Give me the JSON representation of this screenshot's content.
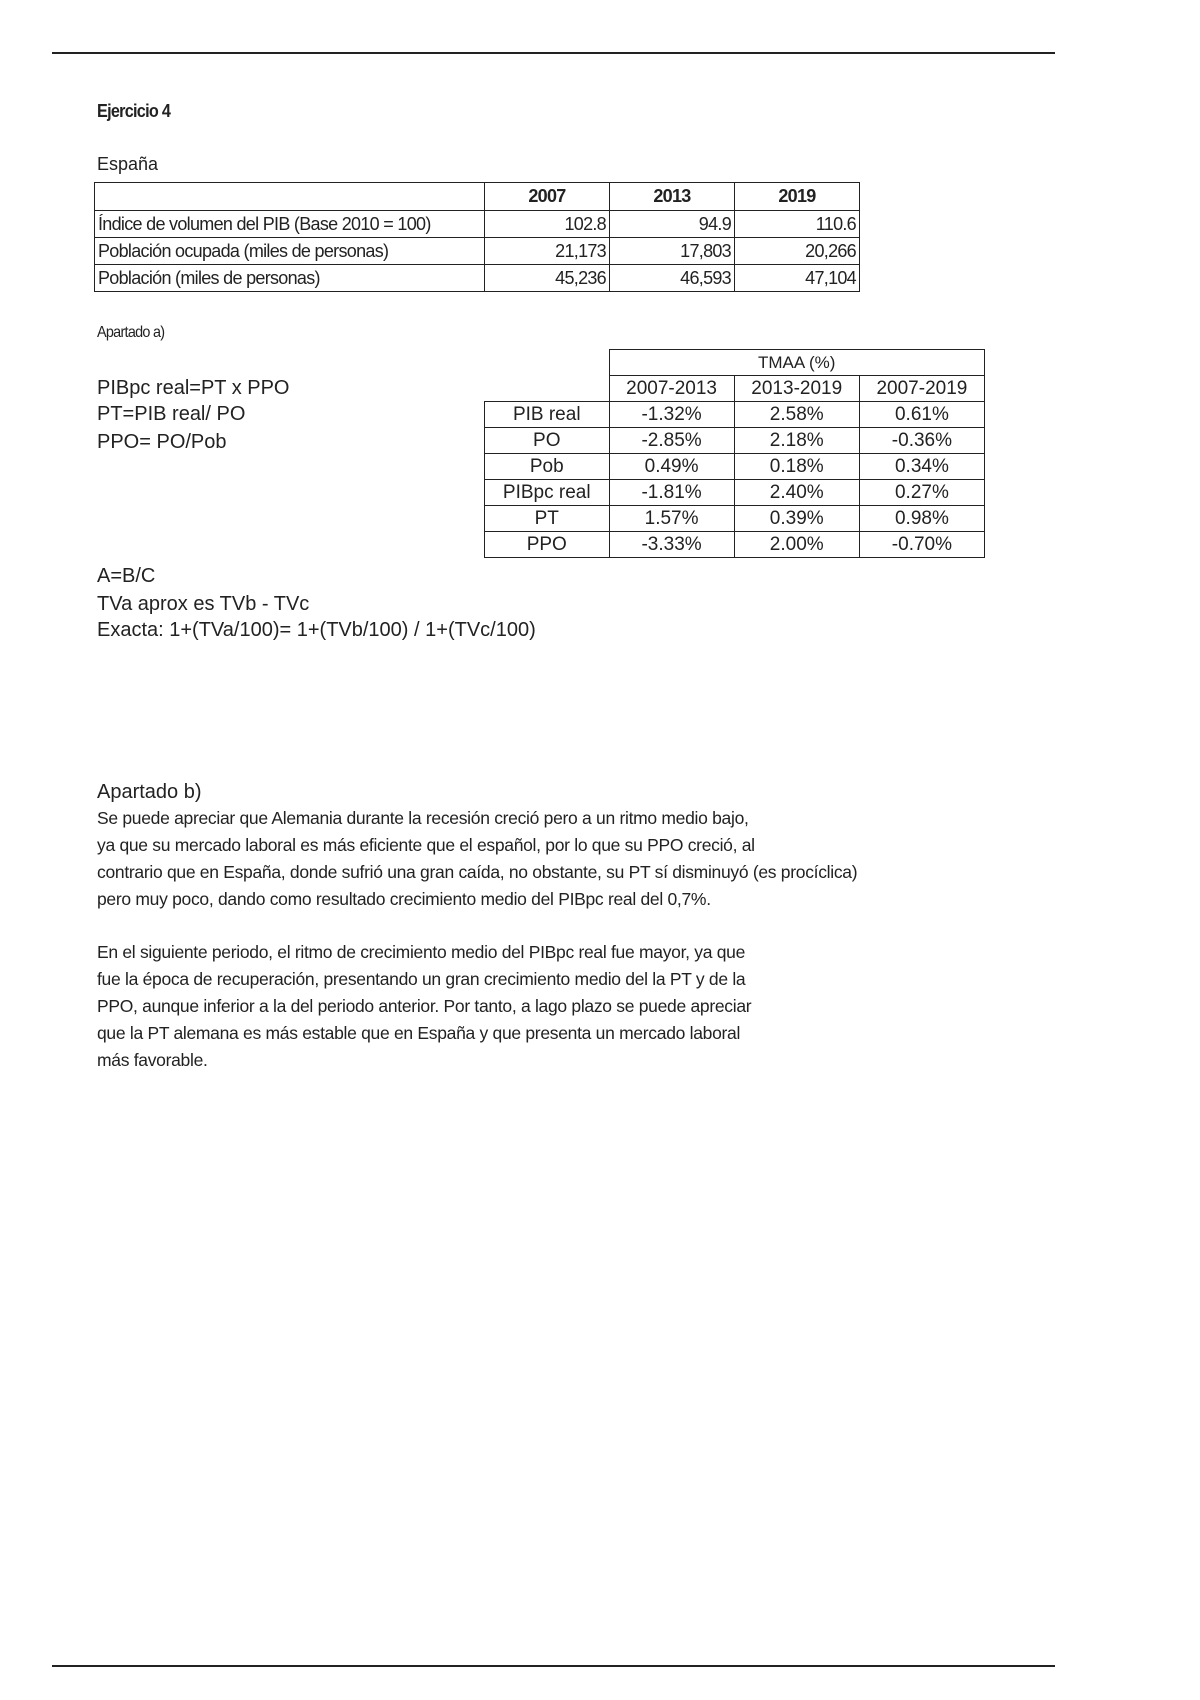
{
  "title": "Ejercicio 4",
  "country": "España",
  "table1": {
    "headers": [
      "",
      "2007",
      "2013",
      "2019"
    ],
    "rows": [
      {
        "label": "Índice de volumen del PIB (Base 2010 = 100)",
        "values": [
          "102.8",
          "94.9",
          "110.6"
        ]
      },
      {
        "label": "Población ocupada (miles de personas)",
        "values": [
          "21,173",
          "17,803",
          "20,266"
        ]
      },
      {
        "label": "Población  (miles de personas)",
        "values": [
          "45,236",
          "46,593",
          "47,104"
        ]
      }
    ]
  },
  "apartado_a": {
    "heading": "Apartado a)",
    "formulas": [
      "PIBpc real=PT x PPO",
      "PT=PIB real/ PO",
      "PPO= PO/Pob"
    ],
    "notes": [
      "A=B/C",
      "TVa aprox es TVb - TVc",
      "Exacta: 1+(TVa/100)= 1+(TVb/100) / 1+(TVc/100)"
    ],
    "table": {
      "group_header": "TMAA (%)",
      "periods": [
        "2007-2013",
        "2013-2019",
        "2007-2019"
      ],
      "rows": [
        {
          "label": "PIB real",
          "values": [
            "-1.32%",
            "2.58%",
            "0.61%"
          ]
        },
        {
          "label": "PO",
          "values": [
            "-2.85%",
            "2.18%",
            "-0.36%"
          ]
        },
        {
          "label": "Pob",
          "values": [
            "0.49%",
            "0.18%",
            "0.34%"
          ]
        },
        {
          "label": "PIBpc real",
          "values": [
            "-1.81%",
            "2.40%",
            "0.27%"
          ]
        },
        {
          "label": "PT",
          "values": [
            "1.57%",
            "0.39%",
            "0.98%"
          ]
        },
        {
          "label": "PPO",
          "values": [
            "-3.33%",
            "2.00%",
            "-0.70%"
          ]
        }
      ]
    }
  },
  "apartado_b": {
    "heading": "Apartado b)",
    "paragraph1": [
      "Se puede apreciar que Alemania durante la recesión creció pero a un ritmo medio bajo,",
      "ya que su mercado laboral es más eficiente que el español, por lo que su PPO creció, al",
      "contrario que en España, donde sufrió una gran caída, no obstante, su PT sí disminuyó (es procíclica)",
      "pero muy poco, dando como resultado crecimiento medio del PIBpc real del 0,7%."
    ],
    "paragraph2": [
      "En el siguiente periodo, el ritmo de crecimiento medio del PIBpc real fue mayor, ya que",
      "fue la época de recuperación, presentando un gran crecimiento medio del la PT y de la",
      "PPO, aunque inferior a la del periodo anterior. Por tanto, a lago plazo se puede apreciar",
      "que la PT alemana es más estable que en España y que presenta un mercado laboral",
      "más favorable."
    ]
  }
}
